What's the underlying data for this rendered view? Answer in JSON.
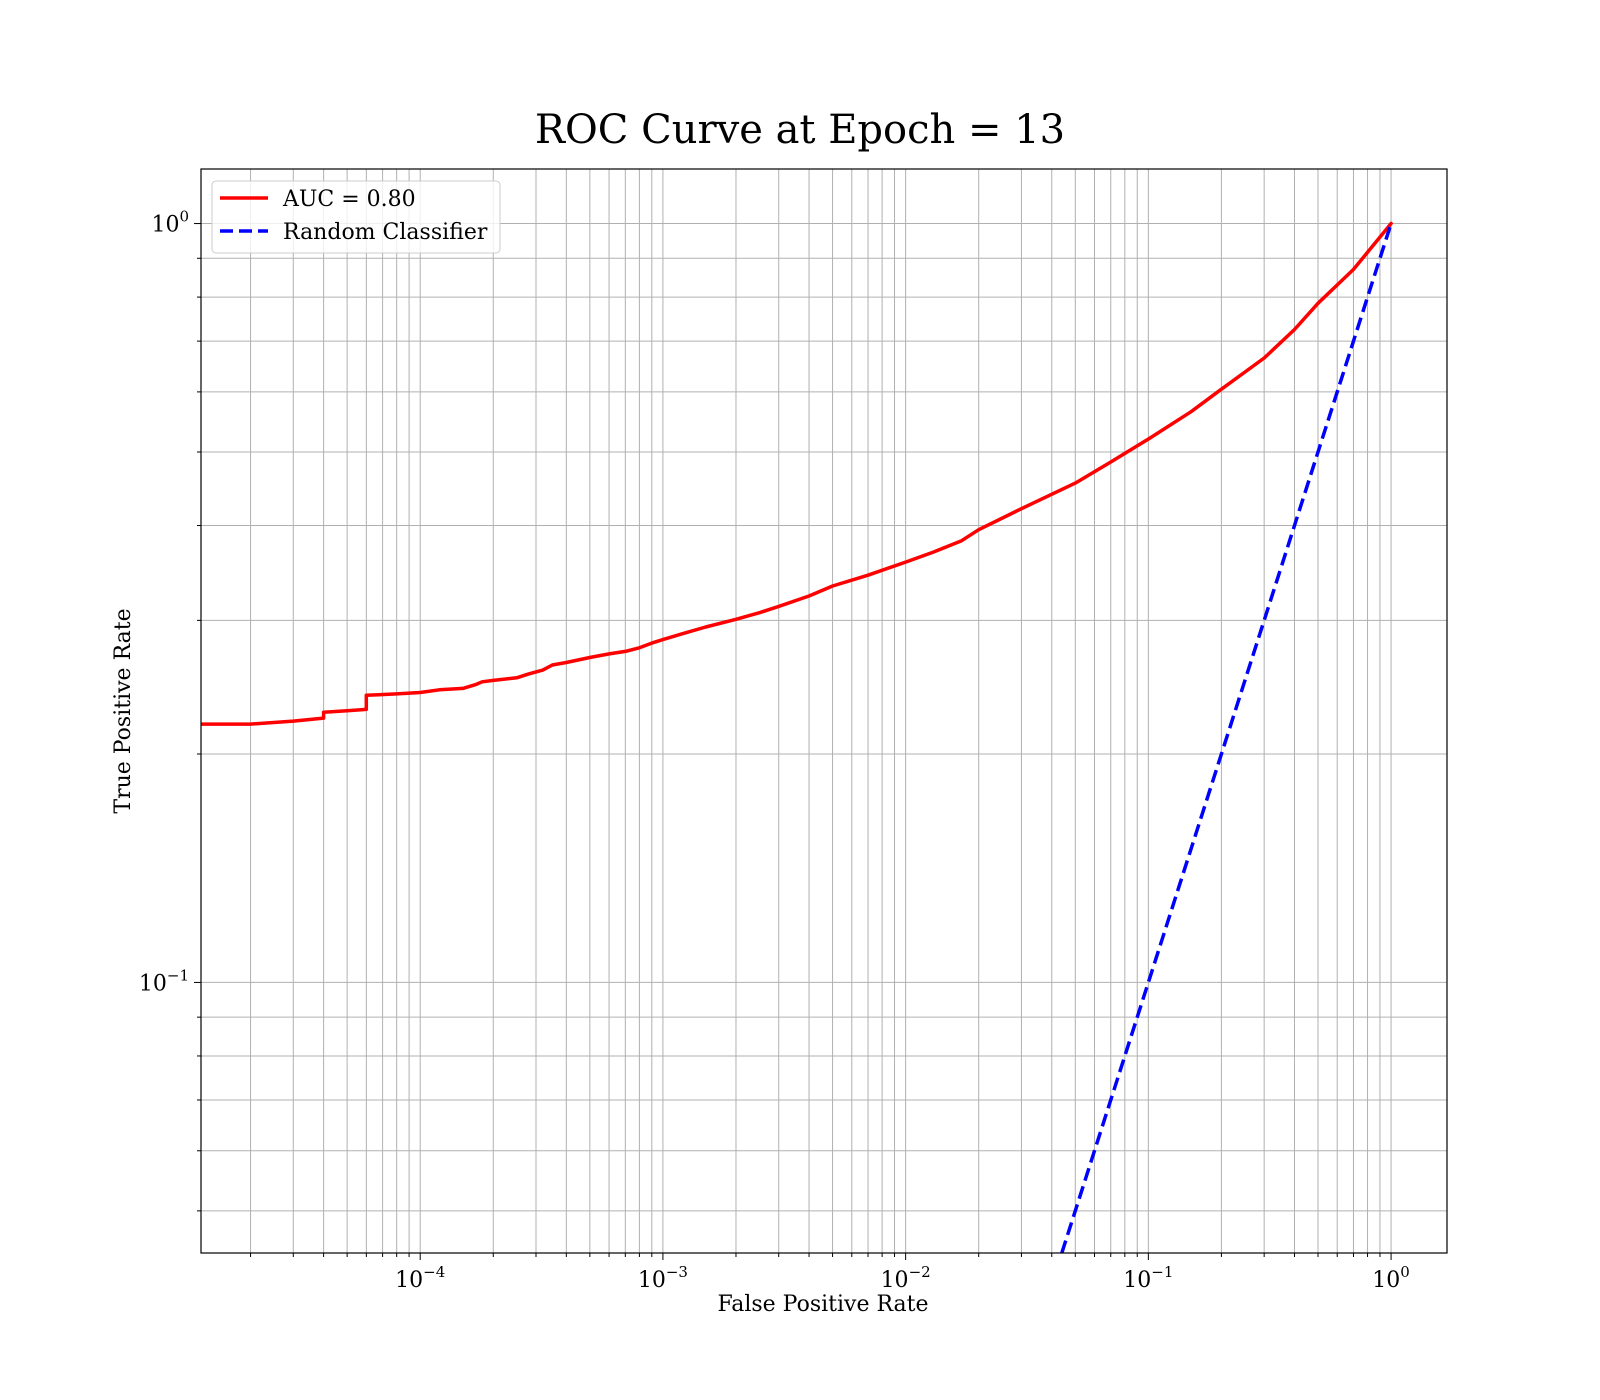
{
  "chart_data": {
    "type": "line",
    "title": "ROC Curve at Epoch = 13",
    "xlabel": "False Positive Rate",
    "ylabel": "True Positive Rate",
    "xscale": "log",
    "yscale": "log",
    "xlim": [
      1.25e-05,
      1.7
    ],
    "ylim": [
      0.044,
      1.18
    ],
    "grid": true,
    "grid_which": "both",
    "legend_position": "upper-left",
    "x_ticks": [
      {
        "value": 0.0001,
        "base": "10",
        "exp": "−4"
      },
      {
        "value": 0.001,
        "base": "10",
        "exp": "−3"
      },
      {
        "value": 0.01,
        "base": "10",
        "exp": "−2"
      },
      {
        "value": 0.1,
        "base": "10",
        "exp": "−1"
      },
      {
        "value": 1,
        "base": "10",
        "exp": "0"
      }
    ],
    "y_ticks": [
      {
        "value": 0.1,
        "base": "10",
        "exp": "−1"
      },
      {
        "value": 1,
        "base": "10",
        "exp": "0"
      }
    ],
    "series": [
      {
        "name": "AUC = 0.80",
        "color": "#ff0000",
        "style": "solid",
        "x": [
          1.25e-05,
          2e-05,
          3e-05,
          4e-05,
          4e-05,
          5e-05,
          6e-05,
          6e-05,
          8e-05,
          0.0001,
          0.00012,
          0.00015,
          0.00017,
          0.00018,
          0.0002,
          0.00025,
          0.00028,
          0.00032,
          0.00035,
          0.0004,
          0.0005,
          0.0006,
          0.0007,
          0.0008,
          0.0009,
          0.001,
          0.0012,
          0.0015,
          0.002,
          0.0025,
          0.003,
          0.004,
          0.005,
          0.007,
          0.01,
          0.013,
          0.017,
          0.02,
          0.03,
          0.05,
          0.07,
          0.1,
          0.15,
          0.2,
          0.3,
          0.4,
          0.5,
          0.7,
          1.0
        ],
        "y": [
          0.219,
          0.219,
          0.221,
          0.223,
          0.227,
          0.228,
          0.229,
          0.239,
          0.24,
          0.241,
          0.243,
          0.244,
          0.247,
          0.249,
          0.25,
          0.252,
          0.255,
          0.258,
          0.262,
          0.264,
          0.268,
          0.271,
          0.273,
          0.276,
          0.28,
          0.283,
          0.288,
          0.294,
          0.301,
          0.307,
          0.313,
          0.323,
          0.333,
          0.344,
          0.358,
          0.369,
          0.382,
          0.395,
          0.421,
          0.455,
          0.485,
          0.52,
          0.565,
          0.605,
          0.665,
          0.725,
          0.785,
          0.87,
          1.0
        ]
      },
      {
        "name": "Random Classifier",
        "color": "#0000ff",
        "style": "dashed",
        "x": [
          0.044,
          1.0
        ],
        "y": [
          0.044,
          1.0
        ]
      }
    ]
  }
}
